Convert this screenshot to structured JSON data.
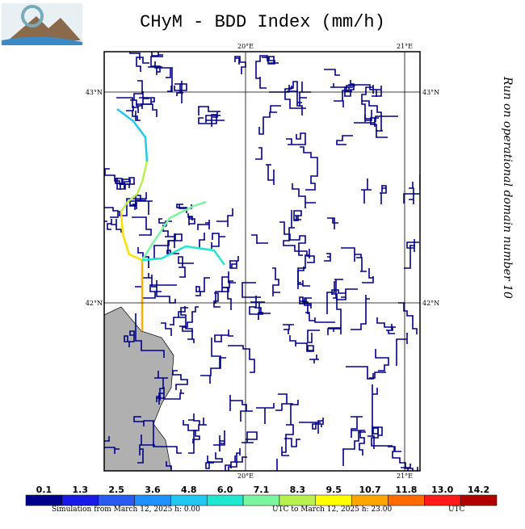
{
  "header": {
    "title": "CHyM - BDD Index (mm/h)"
  },
  "side_note": "Run on operational domain number 10",
  "axes": {
    "lon": [
      "20°E",
      "21°E"
    ],
    "lat": [
      "43°N",
      "42°N"
    ]
  },
  "legend": {
    "labels": [
      "0.1",
      "1.3",
      "2.5",
      "3.6",
      "4.8",
      "6.0",
      "7.1",
      "8.3",
      "9.5",
      "10.7",
      "11.8",
      "13.0",
      "14.2"
    ],
    "colors": [
      "#00008b",
      "#1a1ae6",
      "#2a5af0",
      "#1e90ff",
      "#22c8f0",
      "#20e8d0",
      "#7cf5a0",
      "#b8f050",
      "#ffff00",
      "#ffa500",
      "#ff6a00",
      "#ff1a1a",
      "#b00000"
    ]
  },
  "footer": [
    "Simulation from March 12, 2025 h: 0.00",
    "UTC to March 12, 2025 h: 23.00",
    "UTC"
  ]
}
